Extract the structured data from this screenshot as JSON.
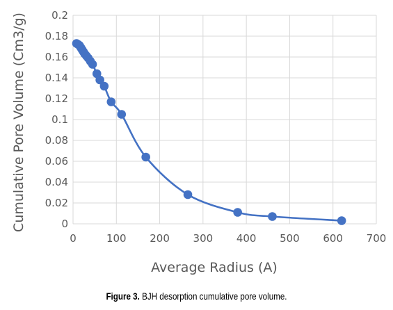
{
  "chart_data": {
    "type": "scatter",
    "title": "",
    "xlabel": "Average Radius (A)",
    "ylabel": "Cumulative Pore Volume (Cm3/g)",
    "xlim": [
      0,
      700
    ],
    "ylim": [
      0,
      0.2
    ],
    "xticks": [
      "0",
      "100",
      "200",
      "300",
      "400",
      "500",
      "600",
      "700"
    ],
    "yticks": [
      "0",
      "0.02",
      "0.04",
      "0.06",
      "0.08",
      "0.1",
      "0.12",
      "0.14",
      "0.16",
      "0.18",
      "0.2"
    ],
    "grid": true,
    "smooth_line": true,
    "color": "#4472c4",
    "series": [
      {
        "x": [
          8,
          12,
          15,
          18,
          21,
          24,
          27,
          31,
          35,
          40,
          45,
          55,
          62,
          72,
          88,
          112,
          168,
          265,
          380,
          460,
          620
        ],
        "y": [
          0.173,
          0.172,
          0.171,
          0.169,
          0.167,
          0.165,
          0.163,
          0.161,
          0.159,
          0.156,
          0.153,
          0.144,
          0.138,
          0.132,
          0.117,
          0.105,
          0.064,
          0.028,
          0.011,
          0.007,
          0.003
        ]
      }
    ]
  },
  "caption": {
    "label": "Figure 3.",
    "text": " BJH desorption cumulative pore volume."
  }
}
